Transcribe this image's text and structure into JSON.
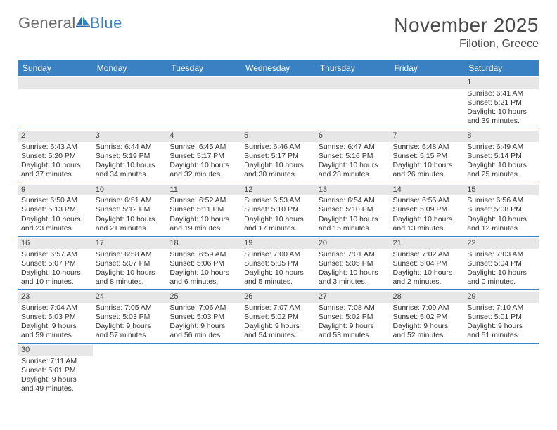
{
  "logo": {
    "text1": "General",
    "text2": "Blue"
  },
  "title": "November 2025",
  "location": "Filotion, Greece",
  "colors": {
    "header_bg": "#3a81c4",
    "header_text": "#ffffff",
    "daynum_bg": "#e7e7e7",
    "cell_border": "#3a81c4",
    "body_text": "#333333",
    "title_text": "#4a4a4a"
  },
  "day_headers": [
    "Sunday",
    "Monday",
    "Tuesday",
    "Wednesday",
    "Thursday",
    "Friday",
    "Saturday"
  ],
  "weeks": [
    [
      {
        "day": "",
        "sunrise": "",
        "sunset": "",
        "daylight": ""
      },
      {
        "day": "",
        "sunrise": "",
        "sunset": "",
        "daylight": ""
      },
      {
        "day": "",
        "sunrise": "",
        "sunset": "",
        "daylight": ""
      },
      {
        "day": "",
        "sunrise": "",
        "sunset": "",
        "daylight": ""
      },
      {
        "day": "",
        "sunrise": "",
        "sunset": "",
        "daylight": ""
      },
      {
        "day": "",
        "sunrise": "",
        "sunset": "",
        "daylight": ""
      },
      {
        "day": "1",
        "sunrise": "Sunrise: 6:41 AM",
        "sunset": "Sunset: 5:21 PM",
        "daylight": "Daylight: 10 hours and 39 minutes."
      }
    ],
    [
      {
        "day": "2",
        "sunrise": "Sunrise: 6:43 AM",
        "sunset": "Sunset: 5:20 PM",
        "daylight": "Daylight: 10 hours and 37 minutes."
      },
      {
        "day": "3",
        "sunrise": "Sunrise: 6:44 AM",
        "sunset": "Sunset: 5:19 PM",
        "daylight": "Daylight: 10 hours and 34 minutes."
      },
      {
        "day": "4",
        "sunrise": "Sunrise: 6:45 AM",
        "sunset": "Sunset: 5:17 PM",
        "daylight": "Daylight: 10 hours and 32 minutes."
      },
      {
        "day": "5",
        "sunrise": "Sunrise: 6:46 AM",
        "sunset": "Sunset: 5:17 PM",
        "daylight": "Daylight: 10 hours and 30 minutes."
      },
      {
        "day": "6",
        "sunrise": "Sunrise: 6:47 AM",
        "sunset": "Sunset: 5:16 PM",
        "daylight": "Daylight: 10 hours and 28 minutes."
      },
      {
        "day": "7",
        "sunrise": "Sunrise: 6:48 AM",
        "sunset": "Sunset: 5:15 PM",
        "daylight": "Daylight: 10 hours and 26 minutes."
      },
      {
        "day": "8",
        "sunrise": "Sunrise: 6:49 AM",
        "sunset": "Sunset: 5:14 PM",
        "daylight": "Daylight: 10 hours and 25 minutes."
      }
    ],
    [
      {
        "day": "9",
        "sunrise": "Sunrise: 6:50 AM",
        "sunset": "Sunset: 5:13 PM",
        "daylight": "Daylight: 10 hours and 23 minutes."
      },
      {
        "day": "10",
        "sunrise": "Sunrise: 6:51 AM",
        "sunset": "Sunset: 5:12 PM",
        "daylight": "Daylight: 10 hours and 21 minutes."
      },
      {
        "day": "11",
        "sunrise": "Sunrise: 6:52 AM",
        "sunset": "Sunset: 5:11 PM",
        "daylight": "Daylight: 10 hours and 19 minutes."
      },
      {
        "day": "12",
        "sunrise": "Sunrise: 6:53 AM",
        "sunset": "Sunset: 5:10 PM",
        "daylight": "Daylight: 10 hours and 17 minutes."
      },
      {
        "day": "13",
        "sunrise": "Sunrise: 6:54 AM",
        "sunset": "Sunset: 5:10 PM",
        "daylight": "Daylight: 10 hours and 15 minutes."
      },
      {
        "day": "14",
        "sunrise": "Sunrise: 6:55 AM",
        "sunset": "Sunset: 5:09 PM",
        "daylight": "Daylight: 10 hours and 13 minutes."
      },
      {
        "day": "15",
        "sunrise": "Sunrise: 6:56 AM",
        "sunset": "Sunset: 5:08 PM",
        "daylight": "Daylight: 10 hours and 12 minutes."
      }
    ],
    [
      {
        "day": "16",
        "sunrise": "Sunrise: 6:57 AM",
        "sunset": "Sunset: 5:07 PM",
        "daylight": "Daylight: 10 hours and 10 minutes."
      },
      {
        "day": "17",
        "sunrise": "Sunrise: 6:58 AM",
        "sunset": "Sunset: 5:07 PM",
        "daylight": "Daylight: 10 hours and 8 minutes."
      },
      {
        "day": "18",
        "sunrise": "Sunrise: 6:59 AM",
        "sunset": "Sunset: 5:06 PM",
        "daylight": "Daylight: 10 hours and 6 minutes."
      },
      {
        "day": "19",
        "sunrise": "Sunrise: 7:00 AM",
        "sunset": "Sunset: 5:05 PM",
        "daylight": "Daylight: 10 hours and 5 minutes."
      },
      {
        "day": "20",
        "sunrise": "Sunrise: 7:01 AM",
        "sunset": "Sunset: 5:05 PM",
        "daylight": "Daylight: 10 hours and 3 minutes."
      },
      {
        "day": "21",
        "sunrise": "Sunrise: 7:02 AM",
        "sunset": "Sunset: 5:04 PM",
        "daylight": "Daylight: 10 hours and 2 minutes."
      },
      {
        "day": "22",
        "sunrise": "Sunrise: 7:03 AM",
        "sunset": "Sunset: 5:04 PM",
        "daylight": "Daylight: 10 hours and 0 minutes."
      }
    ],
    [
      {
        "day": "23",
        "sunrise": "Sunrise: 7:04 AM",
        "sunset": "Sunset: 5:03 PM",
        "daylight": "Daylight: 9 hours and 59 minutes."
      },
      {
        "day": "24",
        "sunrise": "Sunrise: 7:05 AM",
        "sunset": "Sunset: 5:03 PM",
        "daylight": "Daylight: 9 hours and 57 minutes."
      },
      {
        "day": "25",
        "sunrise": "Sunrise: 7:06 AM",
        "sunset": "Sunset: 5:03 PM",
        "daylight": "Daylight: 9 hours and 56 minutes."
      },
      {
        "day": "26",
        "sunrise": "Sunrise: 7:07 AM",
        "sunset": "Sunset: 5:02 PM",
        "daylight": "Daylight: 9 hours and 54 minutes."
      },
      {
        "day": "27",
        "sunrise": "Sunrise: 7:08 AM",
        "sunset": "Sunset: 5:02 PM",
        "daylight": "Daylight: 9 hours and 53 minutes."
      },
      {
        "day": "28",
        "sunrise": "Sunrise: 7:09 AM",
        "sunset": "Sunset: 5:02 PM",
        "daylight": "Daylight: 9 hours and 52 minutes."
      },
      {
        "day": "29",
        "sunrise": "Sunrise: 7:10 AM",
        "sunset": "Sunset: 5:01 PM",
        "daylight": "Daylight: 9 hours and 51 minutes."
      }
    ],
    [
      {
        "day": "30",
        "sunrise": "Sunrise: 7:11 AM",
        "sunset": "Sunset: 5:01 PM",
        "daylight": "Daylight: 9 hours and 49 minutes."
      },
      {
        "day": "",
        "sunrise": "",
        "sunset": "",
        "daylight": ""
      },
      {
        "day": "",
        "sunrise": "",
        "sunset": "",
        "daylight": ""
      },
      {
        "day": "",
        "sunrise": "",
        "sunset": "",
        "daylight": ""
      },
      {
        "day": "",
        "sunrise": "",
        "sunset": "",
        "daylight": ""
      },
      {
        "day": "",
        "sunrise": "",
        "sunset": "",
        "daylight": ""
      },
      {
        "day": "",
        "sunrise": "",
        "sunset": "",
        "daylight": ""
      }
    ]
  ]
}
